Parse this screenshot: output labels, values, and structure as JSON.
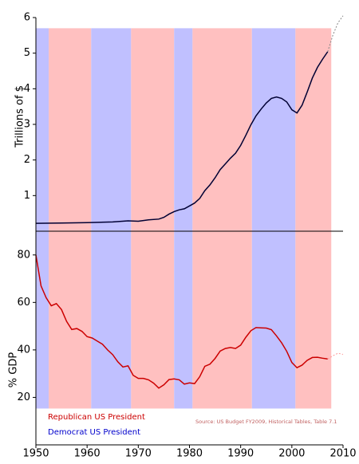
{
  "chart_data": [
    {
      "type": "line",
      "ylabel": "Trillions of $",
      "xlim": [
        1950,
        2010
      ],
      "ylim": [
        0,
        6
      ],
      "yticks": [
        1,
        2,
        3,
        4,
        5,
        6
      ],
      "shade_top": 5.7,
      "series": [
        {
          "color": "#000033",
          "style": "solid",
          "x": [
            1950,
            1955,
            1960,
            1965,
            1968,
            1970,
            1972,
            1974,
            1975,
            1976,
            1977,
            1978,
            1979,
            1980,
            1981,
            1982,
            1983,
            1984,
            1985,
            1986,
            1987,
            1988,
            1989,
            1990,
            1991,
            1992,
            1993,
            1994,
            1995,
            1996,
            1997,
            1998,
            1999,
            2000,
            2001,
            2002,
            2003,
            2004,
            2005,
            2006,
            2007
          ],
          "values": [
            0.22,
            0.23,
            0.24,
            0.26,
            0.29,
            0.28,
            0.32,
            0.34,
            0.39,
            0.48,
            0.55,
            0.6,
            0.63,
            0.71,
            0.79,
            0.92,
            1.14,
            1.3,
            1.5,
            1.73,
            1.89,
            2.05,
            2.19,
            2.41,
            2.69,
            2.99,
            3.24,
            3.43,
            3.6,
            3.73,
            3.77,
            3.73,
            3.63,
            3.41,
            3.32,
            3.54,
            3.91,
            4.3,
            4.6,
            4.83,
            5.04
          ]
        },
        {
          "color": "#888888",
          "style": "dotted",
          "x": [
            2007,
            2008,
            2009,
            2010
          ],
          "values": [
            5.04,
            5.5,
            5.85,
            6.05
          ]
        }
      ]
    },
    {
      "type": "line",
      "ylabel": "% GDP",
      "xlim": [
        1950,
        2010
      ],
      "ylim": [
        0,
        90
      ],
      "yticks": [
        20,
        40,
        60,
        80
      ],
      "xticks": [
        1950,
        1960,
        1970,
        1980,
        1990,
        2000,
        2010
      ],
      "shade_bottom": 15.3,
      "series": [
        {
          "color": "#cc0000",
          "style": "solid",
          "x": [
            1950,
            1951,
            1952,
            1953,
            1954,
            1955,
            1956,
            1957,
            1958,
            1959,
            1960,
            1961,
            1962,
            1963,
            1964,
            1965,
            1966,
            1967,
            1968,
            1969,
            1970,
            1971,
            1972,
            1973,
            1974,
            1975,
            1976,
            1977,
            1978,
            1979,
            1980,
            1981,
            1982,
            1983,
            1984,
            1985,
            1986,
            1987,
            1988,
            1989,
            1990,
            1991,
            1992,
            1993,
            1994,
            1995,
            1996,
            1997,
            1998,
            1999,
            2000,
            2001,
            2002,
            2003,
            2004,
            2005,
            2006,
            2007
          ],
          "values": [
            80,
            67,
            62,
            58.6,
            59.5,
            57,
            52,
            48.6,
            49,
            47.8,
            45.6,
            45,
            43.7,
            42.4,
            40,
            38,
            35,
            32.8,
            33.3,
            29.3,
            28,
            28,
            27.4,
            26,
            23.9,
            25.3,
            27.5,
            27.8,
            27.4,
            25.6,
            26.1,
            25.8,
            28.7,
            33.1,
            34,
            36.4,
            39.5,
            40.6,
            41,
            40.6,
            42,
            45.3,
            48.1,
            49.4,
            49.3,
            49.2,
            48.5,
            45.9,
            43,
            39.4,
            34.7,
            32.5,
            33.6,
            35.6,
            36.8,
            36.9,
            36.5,
            36.2
          ]
        },
        {
          "color": "#ff9999",
          "style": "dotted",
          "x": [
            2007,
            2008,
            2009,
            2010
          ],
          "values": [
            36.2,
            37.5,
            38.6,
            38.1
          ]
        }
      ]
    }
  ],
  "periods": [
    {
      "start": 1950,
      "end": 1952.5,
      "color": "#c0c0ff"
    },
    {
      "start": 1952.5,
      "end": 1960.8,
      "color": "#ffc0c0"
    },
    {
      "start": 1960.8,
      "end": 1968.6,
      "color": "#c0c0ff"
    },
    {
      "start": 1968.6,
      "end": 1977,
      "color": "#ffc0c0"
    },
    {
      "start": 1977,
      "end": 1980.6,
      "color": "#c0c0ff"
    },
    {
      "start": 1980.6,
      "end": 1992.2,
      "color": "#ffc0c0"
    },
    {
      "start": 1992.2,
      "end": 2000.7,
      "color": "#c0c0ff"
    },
    {
      "start": 2000.7,
      "end": 2007.7,
      "color": "#ffc0c0"
    }
  ],
  "legend": [
    {
      "label": "Republican US President",
      "color": "#cc0000"
    },
    {
      "label": "Democrat US President",
      "color": "#0000cc"
    }
  ],
  "source": "Source: US Budget FY2009, Historical Tables, Table 7.1"
}
